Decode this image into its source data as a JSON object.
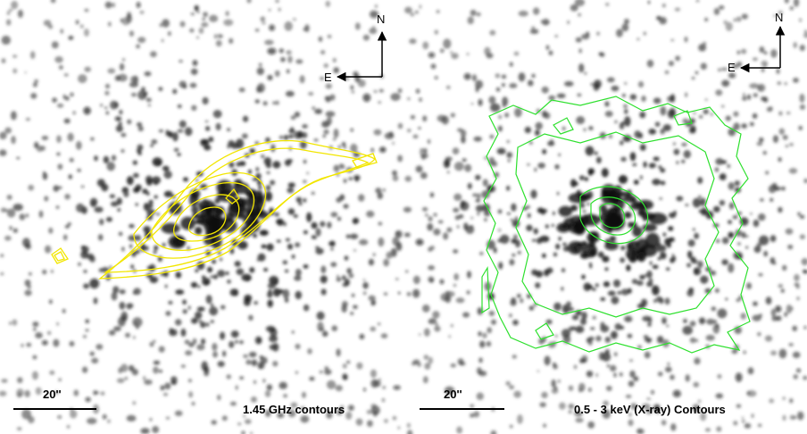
{
  "panels": [
    {
      "north": "N",
      "east": "E",
      "scale_label": "20''",
      "caption": "1.45 GHz contours"
    },
    {
      "north": "N",
      "east": "E",
      "scale_label": "20''",
      "caption": "0.5 - 3 keV (X-ray) Contours"
    }
  ]
}
